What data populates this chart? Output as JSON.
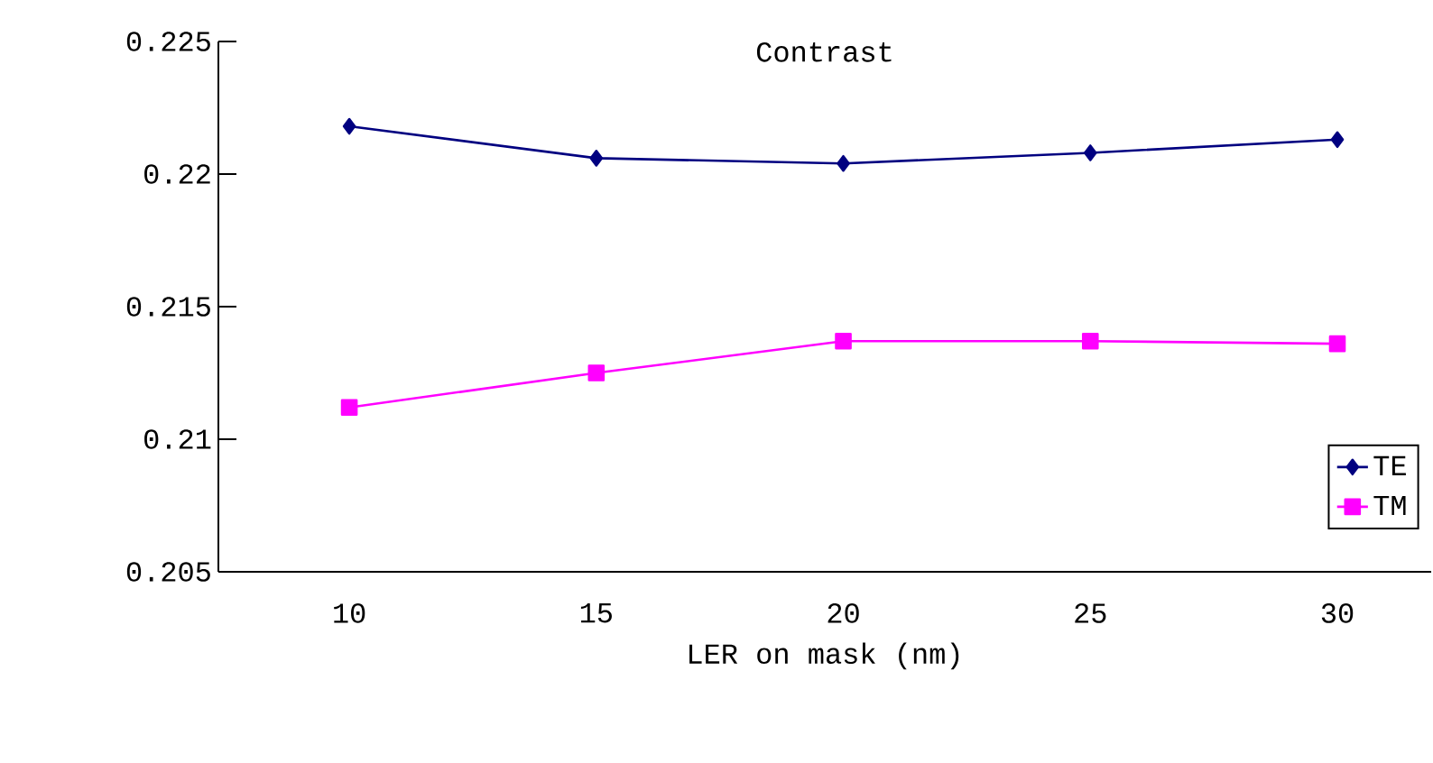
{
  "chart_data": {
    "type": "line",
    "title": "Contrast",
    "xlabel": "LER on mask (nm)",
    "categories": [
      "10",
      "15",
      "20",
      "25",
      "30"
    ],
    "series": [
      {
        "name": "TE",
        "color": "#000080",
        "marker": "diamond",
        "values": [
          0.2218,
          0.2206,
          0.2204,
          0.2208,
          0.2213
        ]
      },
      {
        "name": "TM",
        "color": "#ff00ff",
        "marker": "square",
        "values": [
          0.2112,
          0.2125,
          0.2137,
          0.2137,
          0.2136
        ]
      }
    ],
    "ylim": [
      0.205,
      0.225
    ],
    "yticks": [
      0.205,
      0.21,
      0.215,
      0.22,
      0.225
    ],
    "legend": "bottom right",
    "grid": false,
    "line_style": "solid"
  }
}
